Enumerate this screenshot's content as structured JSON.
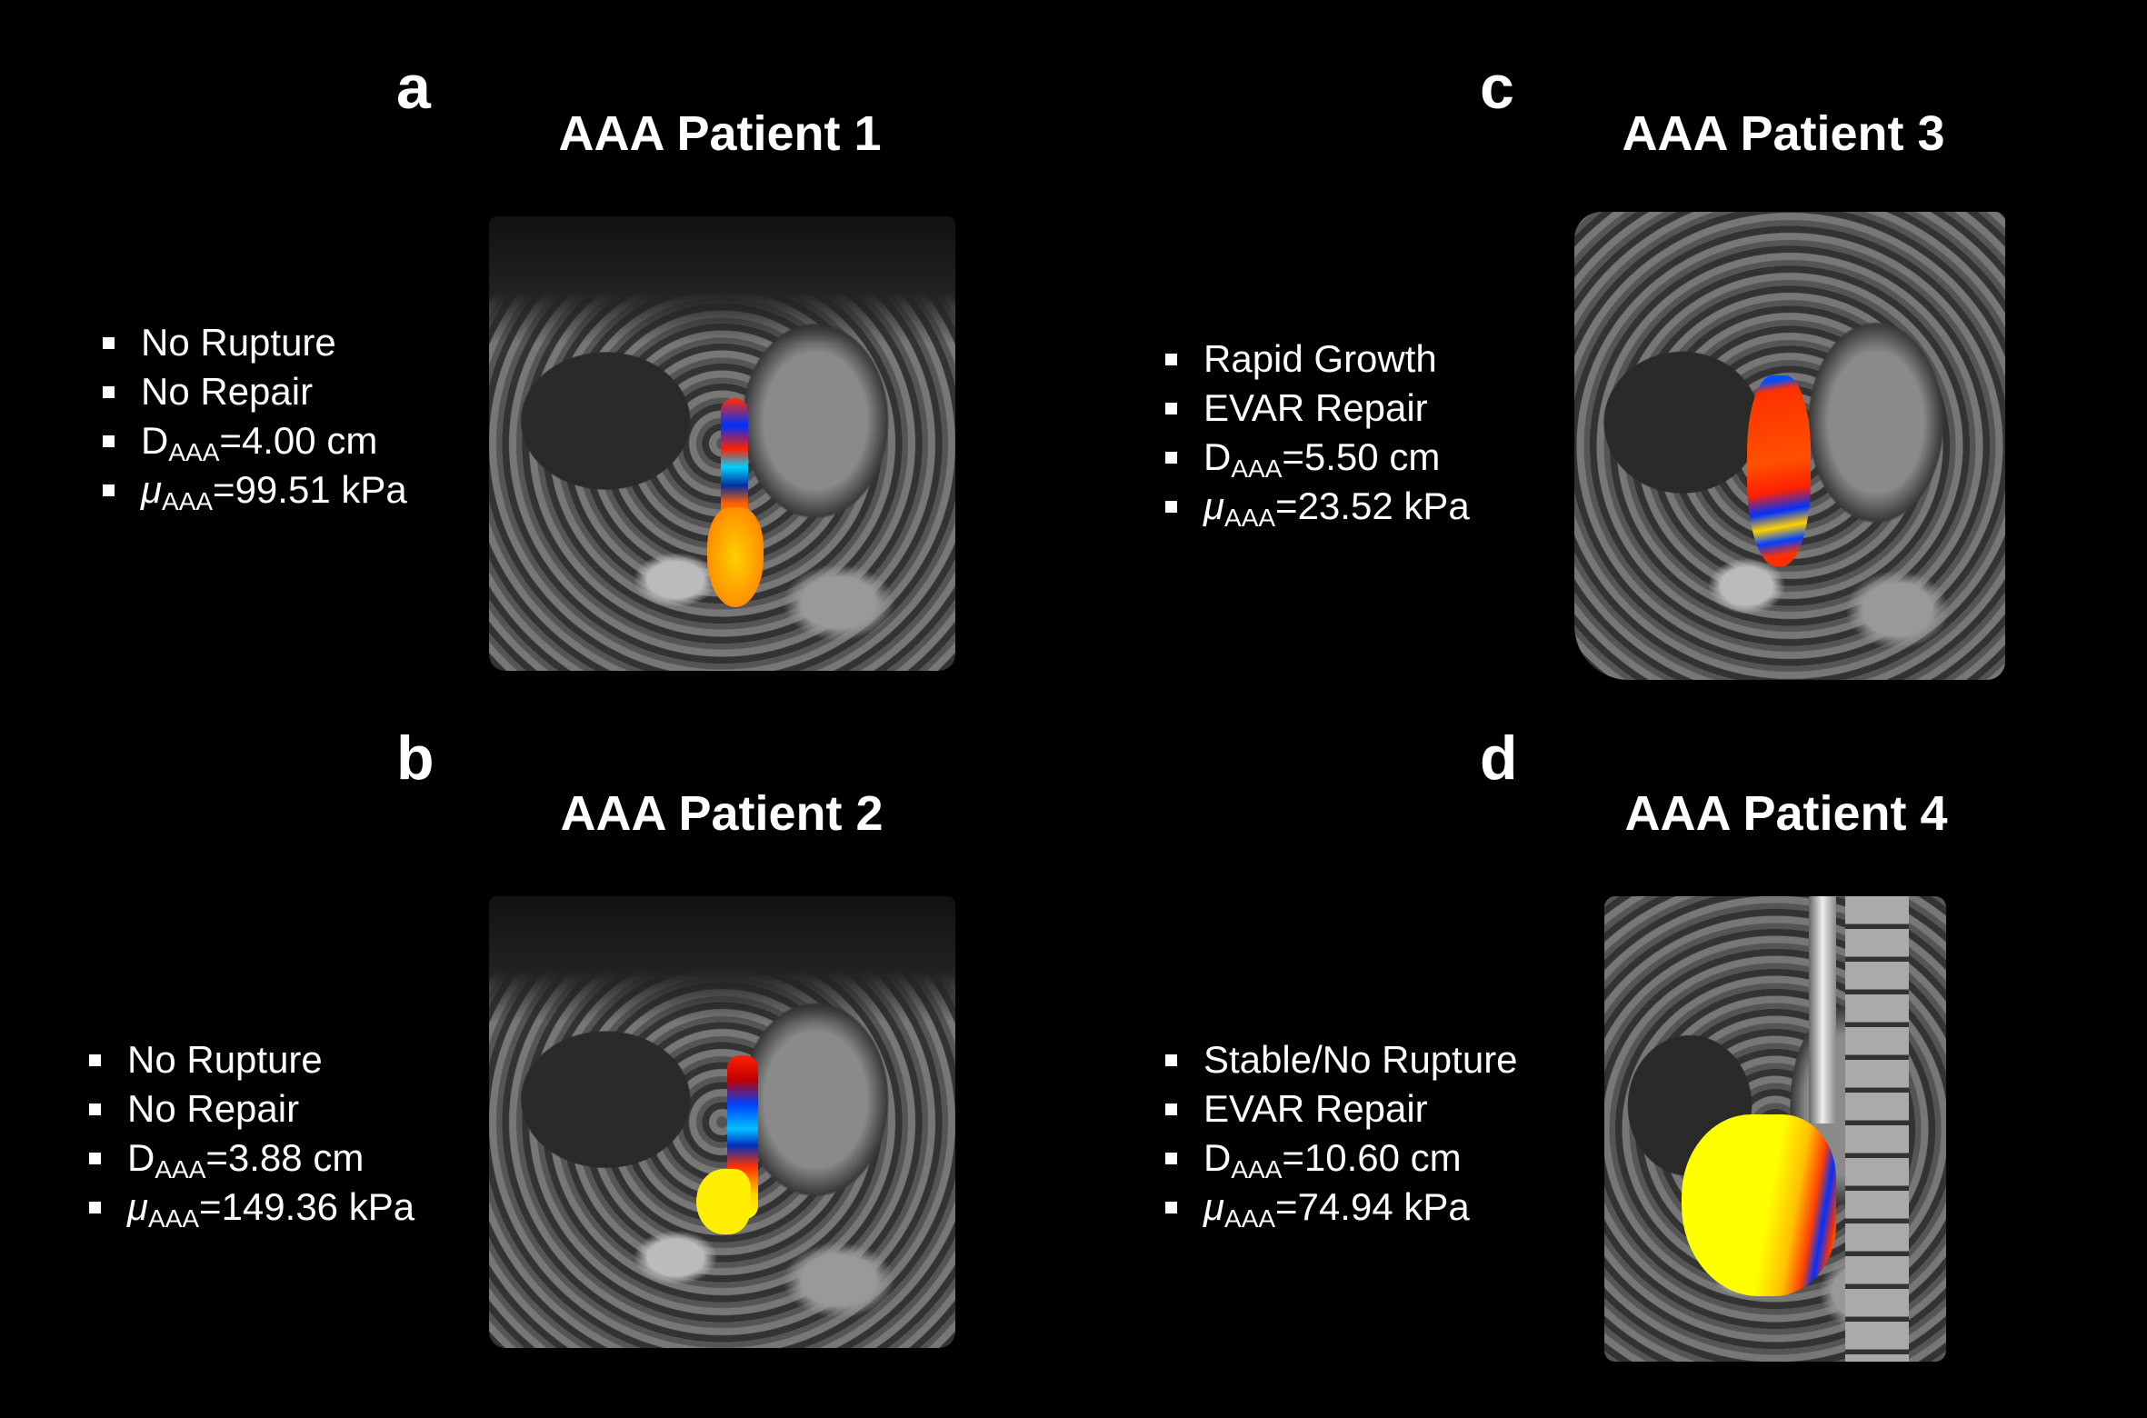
{
  "panels": [
    {
      "label": "a",
      "title": "AAA Patient 1",
      "bullets": [
        "No Rupture",
        "No Repair"
      ],
      "diameter": {
        "symbol": "D",
        "sub": "AAA",
        "value": "=4.00 cm"
      },
      "modulus": {
        "symbol": "μ",
        "sub": "AAA",
        "value": "=99.51 kPa"
      }
    },
    {
      "label": "b",
      "title": "AAA Patient 2",
      "bullets": [
        "No Rupture",
        "No Repair"
      ],
      "diameter": {
        "symbol": "D",
        "sub": "AAA",
        "value": "=3.88 cm"
      },
      "modulus": {
        "symbol": "μ",
        "sub": "AAA",
        "value": "=149.36 kPa"
      }
    },
    {
      "label": "c",
      "title": "AAA Patient 3",
      "bullets": [
        "Rapid Growth",
        "EVAR Repair"
      ],
      "diameter": {
        "symbol": "D",
        "sub": "AAA",
        "value": "=5.50 cm"
      },
      "modulus": {
        "symbol": "μ",
        "sub": "AAA",
        "value": "=23.52 kPa"
      }
    },
    {
      "label": "d",
      "title": "AAA Patient 4",
      "bullets": [
        "Stable/No Rupture",
        "EVAR Repair"
      ],
      "diameter": {
        "symbol": "D",
        "sub": "AAA",
        "value": "=10.60 cm"
      },
      "modulus": {
        "symbol": "μ",
        "sub": "AAA",
        "value": "=74.94 kPa"
      }
    }
  ],
  "colors": {
    "background": "#000000",
    "text": "#ffffff",
    "stiffness_map": [
      "#0000c0",
      "#00c8ff",
      "#ff2000",
      "#ff9000",
      "#ffff00"
    ]
  }
}
